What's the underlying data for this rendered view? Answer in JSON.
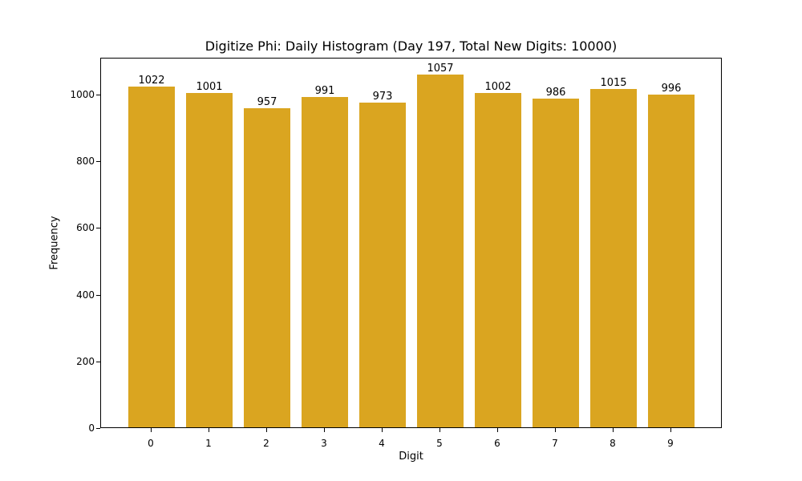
{
  "chart_data": {
    "type": "bar",
    "title": "Digitize Phi: Daily Histogram (Day 197, Total New Digits: 10000)",
    "xlabel": "Digit",
    "ylabel": "Frequency",
    "categories": [
      "0",
      "1",
      "2",
      "3",
      "4",
      "5",
      "6",
      "7",
      "8",
      "9"
    ],
    "values": [
      1022,
      1001,
      957,
      991,
      973,
      1057,
      1002,
      986,
      1015,
      996
    ],
    "data_labels": [
      "1022",
      "1001",
      "957",
      "991",
      "973",
      "1057",
      "1002",
      "986",
      "1015",
      "996"
    ],
    "yticks": [
      0,
      200,
      400,
      600,
      800,
      1000
    ],
    "ylim": [
      0,
      1110
    ],
    "bar_color": "#DAA520",
    "grid": false,
    "legend": null
  }
}
